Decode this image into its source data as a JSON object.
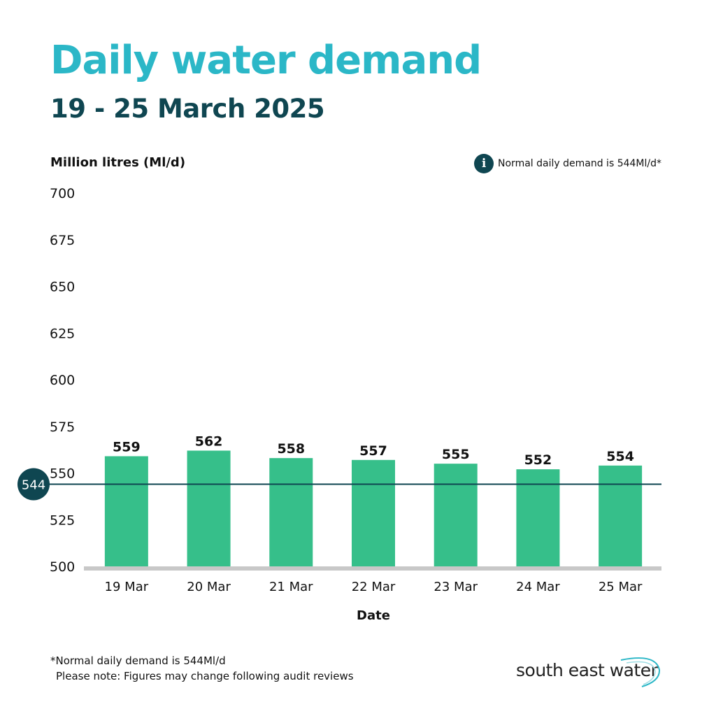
{
  "header": {
    "title": "Daily water demand",
    "subtitle": "19 - 25 March 2025"
  },
  "legend": {
    "icon": "info-icon",
    "icon_glyph": "i",
    "text": "Normal daily demand is 544Ml/d*"
  },
  "colors": {
    "title": "#2bb7c7",
    "subtitle": "#0f4651",
    "bar": "#36bf8a",
    "reference_line": "#0f4651",
    "baseline": "#c8c8c8"
  },
  "chart_data": {
    "type": "bar",
    "title": "Daily water demand",
    "subtitle": "19 - 25 March 2025",
    "xlabel": "Date",
    "ylabel": "Million litres (Ml/d)",
    "categories": [
      "19 Mar",
      "20 Mar",
      "21 Mar",
      "22 Mar",
      "23 Mar",
      "24 Mar",
      "25 Mar"
    ],
    "values": [
      559,
      562,
      558,
      557,
      555,
      552,
      554
    ],
    "ylim": [
      500,
      700
    ],
    "yticks": [
      500,
      525,
      550,
      575,
      600,
      625,
      650,
      675,
      700
    ],
    "reference_line": {
      "value": 544,
      "label": "544"
    },
    "grid": false,
    "legend_position": "top-right"
  },
  "footer": {
    "footnote": "*Normal daily demand is 544Ml/d",
    "note": "Please note: Figures may change following audit reviews",
    "brand": "south east water"
  }
}
